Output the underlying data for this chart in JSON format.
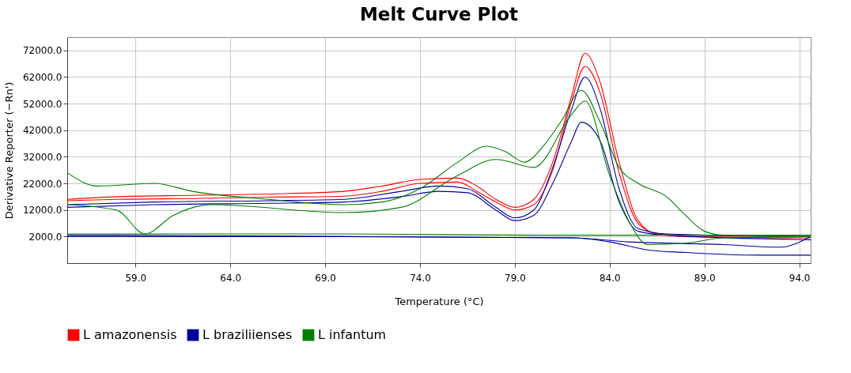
{
  "chart_data": {
    "type": "line",
    "title": "Melt Curve Plot",
    "xlabel": "Temperature (°C)",
    "ylabel": "Derivative Reporter (−Rn')",
    "xlim": [
      55.4,
      94.6
    ],
    "ylim": [
      -8000,
      77000
    ],
    "xticks": [
      {
        "value": 59,
        "label": "59.0"
      },
      {
        "value": 64,
        "label": "64.0"
      },
      {
        "value": 69,
        "label": "69.0"
      },
      {
        "value": 74,
        "label": "74.0"
      },
      {
        "value": 79,
        "label": "79.0"
      },
      {
        "value": 84,
        "label": "84.0"
      },
      {
        "value": 89,
        "label": "89.0"
      },
      {
        "value": 94,
        "label": "94.0"
      }
    ],
    "yticks": [
      {
        "value": 2000,
        "label": "2000.0"
      },
      {
        "value": 12000,
        "label": "12000.0"
      },
      {
        "value": 22000,
        "label": "22000.0"
      },
      {
        "value": 32000,
        "label": "32000.0"
      },
      {
        "value": 42000,
        "label": "42000.0"
      },
      {
        "value": 52000,
        "label": "52000.0"
      },
      {
        "value": 62000,
        "label": "62000.0"
      },
      {
        "value": 72000,
        "label": "72000.0"
      }
    ],
    "grid": true,
    "legend": "bottom",
    "marker": "none",
    "line_style": "solid",
    "series": [
      {
        "name": "L amazonensis",
        "color": "#ff0000",
        "x": [
          55.4,
          58,
          62,
          66,
          70,
          72,
          74,
          76,
          77,
          78,
          79,
          80,
          81,
          82,
          82.7,
          83.5,
          84.5,
          85.5,
          86.5,
          88,
          94.6
        ],
        "values": [
          16000,
          17000,
          17500,
          18000,
          19000,
          21000,
          23500,
          24000,
          21000,
          16000,
          13000,
          16000,
          30000,
          55000,
          71000,
          60000,
          30000,
          8000,
          3000,
          2500,
          2000
        ]
      },
      {
        "color": "#ff0000",
        "x": [
          55.4,
          58,
          62,
          66,
          70,
          72,
          74,
          76,
          77,
          78,
          79,
          80,
          81,
          82,
          82.7,
          83.5,
          84.5,
          85.5,
          86.5,
          88,
          94.6
        ],
        "values": [
          15500,
          16000,
          16300,
          16800,
          17200,
          19000,
          22000,
          22500,
          19000,
          15000,
          12000,
          14000,
          27000,
          53000,
          66000,
          56000,
          26000,
          7000,
          3000,
          2000,
          1500
        ]
      },
      {
        "name": "L braziliienses",
        "color": "#0000a0",
        "x": [
          55.4,
          60,
          66,
          70,
          73,
          75,
          76.5,
          78,
          79,
          80,
          81,
          82,
          82.7,
          83.5,
          84.5,
          85.5,
          87,
          94.6
        ],
        "values": [
          14000,
          15000,
          15500,
          16000,
          19000,
          21000,
          20000,
          13000,
          9000,
          12000,
          28000,
          50000,
          62000,
          50000,
          20000,
          5000,
          3000,
          2000
        ]
      },
      {
        "color": "#0000a0",
        "x": [
          55.4,
          60,
          66,
          70,
          73,
          75,
          76.5,
          78,
          79,
          80,
          81,
          82,
          82.5,
          83.5,
          84.5,
          85.5,
          87,
          94.6
        ],
        "values": [
          13000,
          14000,
          14500,
          15000,
          17000,
          19000,
          18500,
          12000,
          8000,
          10000,
          22000,
          38000,
          45000,
          38000,
          15000,
          4000,
          2500,
          800
        ]
      },
      {
        "color": "#0000a0",
        "x": [
          55.4,
          58,
          70,
          82,
          84,
          86,
          88,
          92,
          94.6
        ],
        "values": [
          2500,
          2500,
          2000,
          1500,
          0,
          -3000,
          -4000,
          -5000,
          -5000
        ]
      },
      {
        "color": "#0000a0",
        "x": [
          55.4,
          70,
          82,
          85,
          90,
          93,
          94.6
        ],
        "values": [
          2000,
          2000,
          1500,
          0,
          -1000,
          -2000,
          2000
        ]
      },
      {
        "name": "L infantum",
        "color": "#008000",
        "x": [
          55.4,
          57,
          60,
          62,
          66,
          70,
          72,
          74,
          76,
          77.5,
          78.5,
          79.5,
          80.5,
          81.5,
          82.5,
          83.5,
          84.5,
          85.5,
          87,
          88,
          89,
          90,
          94.6
        ],
        "values": [
          26000,
          21000,
          22000,
          19000,
          16000,
          14000,
          15000,
          20000,
          30000,
          36000,
          34000,
          30000,
          36000,
          46000,
          57000,
          45000,
          28000,
          22000,
          17000,
          10000,
          4000,
          2500,
          2000
        ]
      },
      {
        "color": "#008000",
        "x": [
          55.4,
          58,
          59.5,
          61,
          63,
          70,
          73,
          76,
          78,
          80,
          82,
          82.7,
          84,
          85,
          86,
          88,
          90,
          94.6
        ],
        "values": [
          14000,
          12000,
          3000,
          10000,
          14000,
          11000,
          13000,
          25000,
          31000,
          28000,
          48000,
          53000,
          25000,
          8000,
          -1000,
          -500,
          1500,
          2000
        ]
      },
      {
        "color": "#008000",
        "x": [
          55.4,
          60,
          70,
          80,
          85,
          90,
          94.6
        ],
        "values": [
          3000,
          3000,
          3000,
          2500,
          2500,
          2500,
          2500
        ]
      }
    ]
  }
}
